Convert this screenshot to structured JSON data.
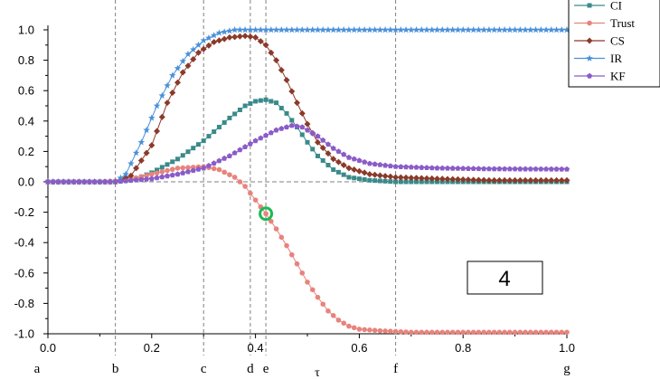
{
  "chart_data": {
    "type": "line",
    "title": "",
    "xlabel": "τ",
    "ylabel": "",
    "xlim": [
      0,
      1
    ],
    "ylim": [
      -1,
      1
    ],
    "x_ticks": [
      "0.0",
      "0.2",
      "0.4",
      "0.6",
      "0.8",
      "1.0"
    ],
    "y_ticks": [
      "1.0",
      "0.8",
      "0.6",
      "0.4",
      "0.2",
      "0.0",
      "-0.2",
      "-0.4",
      "-0.6",
      "-0.8",
      "-1.0"
    ],
    "grid": false,
    "legend_position": "top-right",
    "vertical_markers": [
      {
        "label": "a",
        "x": 0.0,
        "dashed": false
      },
      {
        "label": "b",
        "x": 0.13,
        "dashed": true
      },
      {
        "label": "c",
        "x": 0.3,
        "dashed": true
      },
      {
        "label": "d",
        "x": 0.39,
        "dashed": true
      },
      {
        "label": "e",
        "x": 0.42,
        "dashed": true
      },
      {
        "label": "f",
        "x": 0.67,
        "dashed": true
      },
      {
        "label": "g",
        "x": 1.0,
        "dashed": false
      }
    ],
    "reference_line_y": 0,
    "annotation_box": "4",
    "highlight_point": {
      "series": "Trust",
      "x": 0.42,
      "y": -0.21,
      "color": "#1db954"
    },
    "series": [
      {
        "name": "CI",
        "color": "#3a8a8a",
        "marker": "square",
        "points": [
          [
            0,
            0
          ],
          [
            0.13,
            0
          ],
          [
            0.17,
            0.02
          ],
          [
            0.2,
            0.06
          ],
          [
            0.25,
            0.15
          ],
          [
            0.3,
            0.27
          ],
          [
            0.35,
            0.42
          ],
          [
            0.38,
            0.5
          ],
          [
            0.4,
            0.53
          ],
          [
            0.42,
            0.54
          ],
          [
            0.44,
            0.52
          ],
          [
            0.46,
            0.45
          ],
          [
            0.48,
            0.36
          ],
          [
            0.5,
            0.26
          ],
          [
            0.52,
            0.17
          ],
          [
            0.55,
            0.08
          ],
          [
            0.58,
            0.03
          ],
          [
            0.62,
            0.01
          ],
          [
            0.67,
            0
          ],
          [
            0.75,
            0
          ],
          [
            0.85,
            0
          ],
          [
            1.0,
            0
          ]
        ]
      },
      {
        "name": "Trust",
        "color": "#e8837c",
        "marker": "circle",
        "points": [
          [
            0,
            0
          ],
          [
            0.1,
            0
          ],
          [
            0.15,
            0.01
          ],
          [
            0.2,
            0.05
          ],
          [
            0.25,
            0.09
          ],
          [
            0.3,
            0.1
          ],
          [
            0.33,
            0.08
          ],
          [
            0.36,
            0.03
          ],
          [
            0.38,
            -0.03
          ],
          [
            0.4,
            -0.12
          ],
          [
            0.42,
            -0.21
          ],
          [
            0.44,
            -0.31
          ],
          [
            0.46,
            -0.42
          ],
          [
            0.48,
            -0.54
          ],
          [
            0.5,
            -0.66
          ],
          [
            0.52,
            -0.76
          ],
          [
            0.54,
            -0.85
          ],
          [
            0.56,
            -0.91
          ],
          [
            0.58,
            -0.95
          ],
          [
            0.6,
            -0.97
          ],
          [
            0.64,
            -0.98
          ],
          [
            0.7,
            -0.99
          ],
          [
            1.0,
            -0.99
          ]
        ]
      },
      {
        "name": "CS",
        "color": "#8b3a2a",
        "marker": "diamond",
        "points": [
          [
            0,
            0
          ],
          [
            0.13,
            0
          ],
          [
            0.16,
            0.04
          ],
          [
            0.2,
            0.24
          ],
          [
            0.23,
            0.52
          ],
          [
            0.26,
            0.72
          ],
          [
            0.29,
            0.85
          ],
          [
            0.32,
            0.92
          ],
          [
            0.35,
            0.95
          ],
          [
            0.38,
            0.96
          ],
          [
            0.4,
            0.95
          ],
          [
            0.42,
            0.9
          ],
          [
            0.44,
            0.8
          ],
          [
            0.46,
            0.67
          ],
          [
            0.48,
            0.52
          ],
          [
            0.5,
            0.38
          ],
          [
            0.52,
            0.26
          ],
          [
            0.55,
            0.15
          ],
          [
            0.58,
            0.09
          ],
          [
            0.62,
            0.05
          ],
          [
            0.67,
            0.03
          ],
          [
            0.75,
            0.02
          ],
          [
            0.85,
            0.01
          ],
          [
            1.0,
            0.01
          ]
        ]
      },
      {
        "name": "IR",
        "color": "#4a90d9",
        "marker": "star",
        "points": [
          [
            0,
            0
          ],
          [
            0.13,
            0
          ],
          [
            0.15,
            0.05
          ],
          [
            0.18,
            0.26
          ],
          [
            0.21,
            0.5
          ],
          [
            0.24,
            0.7
          ],
          [
            0.27,
            0.84
          ],
          [
            0.3,
            0.93
          ],
          [
            0.33,
            0.98
          ],
          [
            0.36,
            1.0
          ],
          [
            0.4,
            1.0
          ],
          [
            0.5,
            1.0
          ],
          [
            0.7,
            1.0
          ],
          [
            1.0,
            1.0
          ]
        ]
      },
      {
        "name": "KF",
        "color": "#8a5cc8",
        "marker": "pentagon",
        "points": [
          [
            0,
            0
          ],
          [
            0.13,
            0
          ],
          [
            0.2,
            0.02
          ],
          [
            0.25,
            0.05
          ],
          [
            0.3,
            0.09
          ],
          [
            0.35,
            0.17
          ],
          [
            0.4,
            0.27
          ],
          [
            0.44,
            0.34
          ],
          [
            0.47,
            0.37
          ],
          [
            0.49,
            0.36
          ],
          [
            0.52,
            0.3
          ],
          [
            0.55,
            0.22
          ],
          [
            0.58,
            0.16
          ],
          [
            0.62,
            0.12
          ],
          [
            0.67,
            0.1
          ],
          [
            0.75,
            0.09
          ],
          [
            0.85,
            0.085
          ],
          [
            1.0,
            0.083
          ]
        ]
      }
    ]
  }
}
